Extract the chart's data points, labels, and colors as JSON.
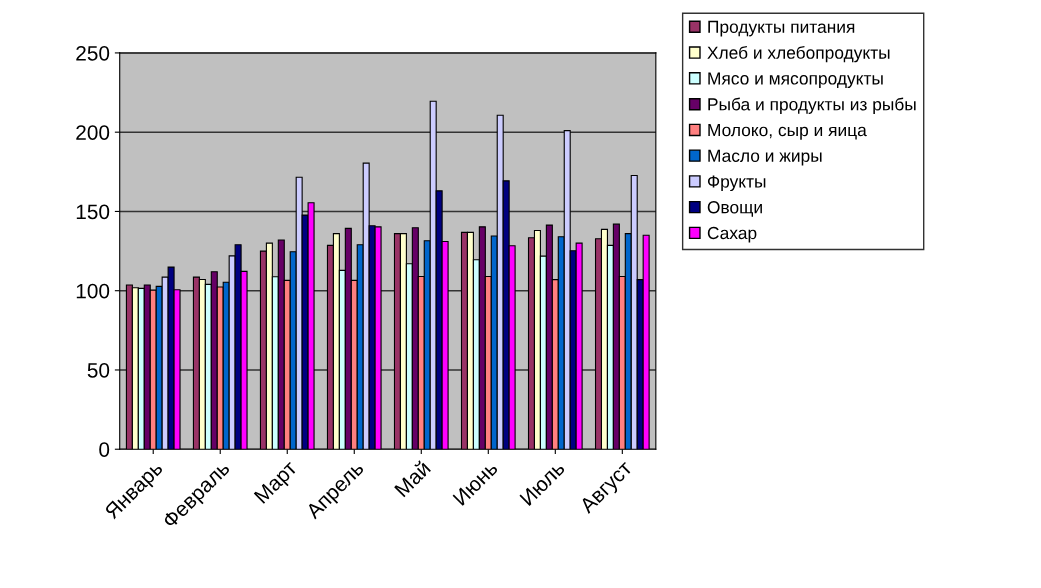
{
  "chart_data": {
    "type": "bar",
    "categories": [
      "Январь",
      "Февраль",
      "Март",
      "Апрель",
      "Май",
      "Июнь",
      "Июль",
      "Август"
    ],
    "series": [
      {
        "name": "Продукты питания",
        "color": "#993366",
        "values": [
          103.6,
          108.6,
          125,
          128.6,
          136,
          136.8,
          133.4,
          132.8
        ]
      },
      {
        "name": "Хлеб и хлебопродукты",
        "color": "#ffffcc",
        "values": [
          101.9,
          107.1,
          130,
          136,
          136,
          136.8,
          138,
          138.7
        ]
      },
      {
        "name": "Мясо и мясопродукты",
        "color": "#ccffff",
        "values": [
          101.5,
          104,
          108.8,
          112.8,
          117,
          119.5,
          121.8,
          128.6
        ]
      },
      {
        "name": "Рыба и продукты из рыбы",
        "color": "#660066",
        "values": [
          103.6,
          112,
          132,
          139.3,
          139.7,
          140.3,
          141.4,
          142
        ]
      },
      {
        "name": "Молоко, сыр и яица",
        "color": "#ff8080",
        "values": [
          100.4,
          102.3,
          106.5,
          106.5,
          109,
          109,
          107,
          109
        ]
      },
      {
        "name": "Масло и жиры",
        "color": "#0066cc",
        "values": [
          102.7,
          105.3,
          124.6,
          129,
          131.5,
          134.5,
          134,
          136
        ]
      },
      {
        "name": "Фрукты",
        "color": "#ccccff",
        "values": [
          108.6,
          122,
          171.6,
          180.5,
          219.5,
          210.7,
          201,
          172.7
        ]
      },
      {
        "name": "Овощи",
        "color": "#000080",
        "values": [
          114.9,
          129,
          147.7,
          141,
          163,
          169.3,
          125.2,
          107
        ]
      },
      {
        "name": "Сахар",
        "color": "#ff00ff",
        "values": [
          100.6,
          112.2,
          155.5,
          140.3,
          131,
          128.4,
          130,
          135
        ]
      }
    ],
    "ylim": [
      0,
      250
    ],
    "yticks": [
      0,
      50,
      100,
      150,
      200,
      250
    ],
    "grid": "y",
    "legend": "right"
  }
}
